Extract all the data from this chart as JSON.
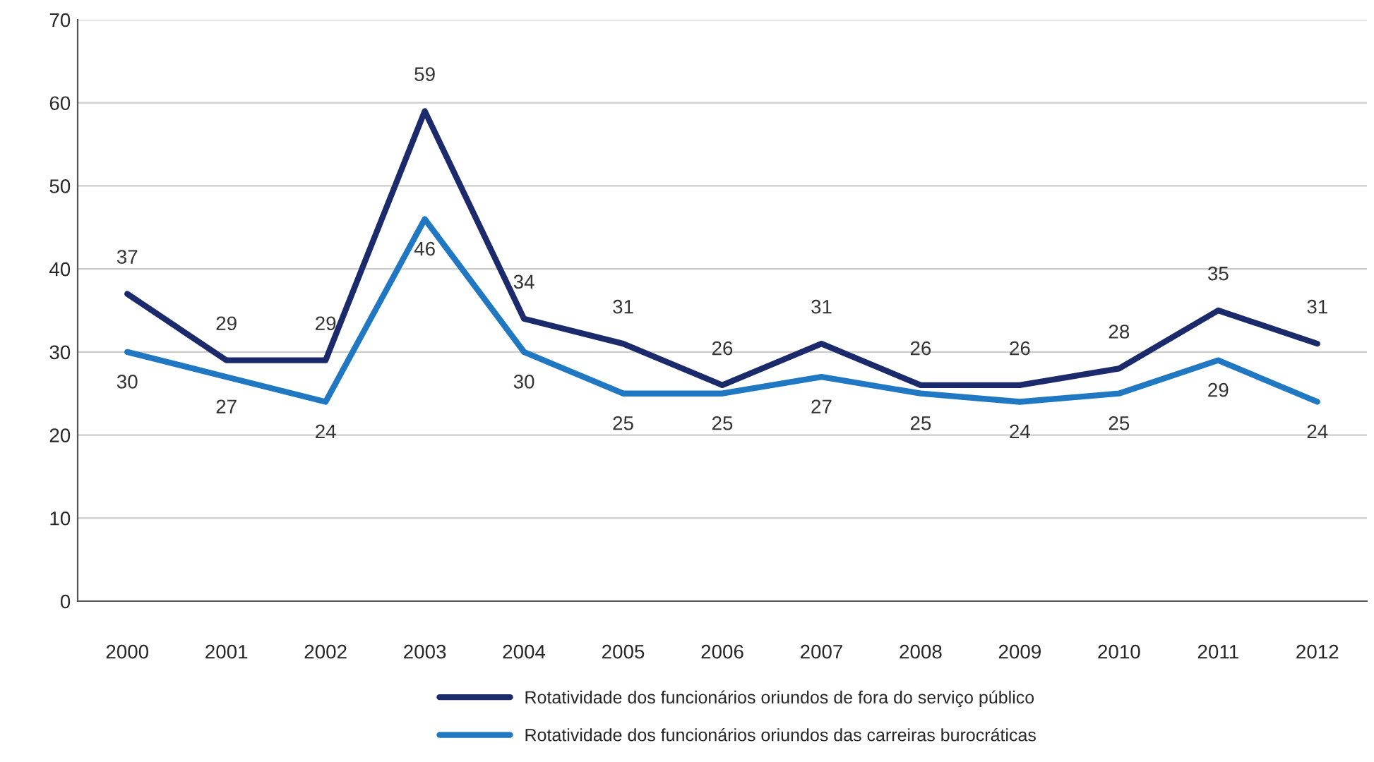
{
  "chart_data": {
    "type": "line",
    "categories": [
      "2000",
      "2001",
      "2002",
      "2003",
      "2004",
      "2005",
      "2006",
      "2007",
      "2008",
      "2009",
      "2010",
      "2011",
      "2012"
    ],
    "series": [
      {
        "name": "Rotatividade dos funcionários oriundos de fora do serviço público",
        "color": "#1b2a6b",
        "values": [
          37,
          29,
          29,
          59,
          34,
          31,
          26,
          31,
          26,
          26,
          28,
          35,
          31
        ]
      },
      {
        "name": "Rotatividade dos funcionários oriundos das carreiras burocráticas",
        "color": "#1f78c1",
        "values": [
          30,
          27,
          24,
          46,
          30,
          25,
          25,
          27,
          25,
          24,
          25,
          29,
          24
        ]
      }
    ],
    "data_labels": true,
    "ylim": [
      0,
      70
    ],
    "yticks": [
      0,
      10,
      20,
      30,
      40,
      50,
      60,
      70
    ],
    "grid": "y",
    "legend": "bottom",
    "marker": "none",
    "line_style": "solid"
  }
}
